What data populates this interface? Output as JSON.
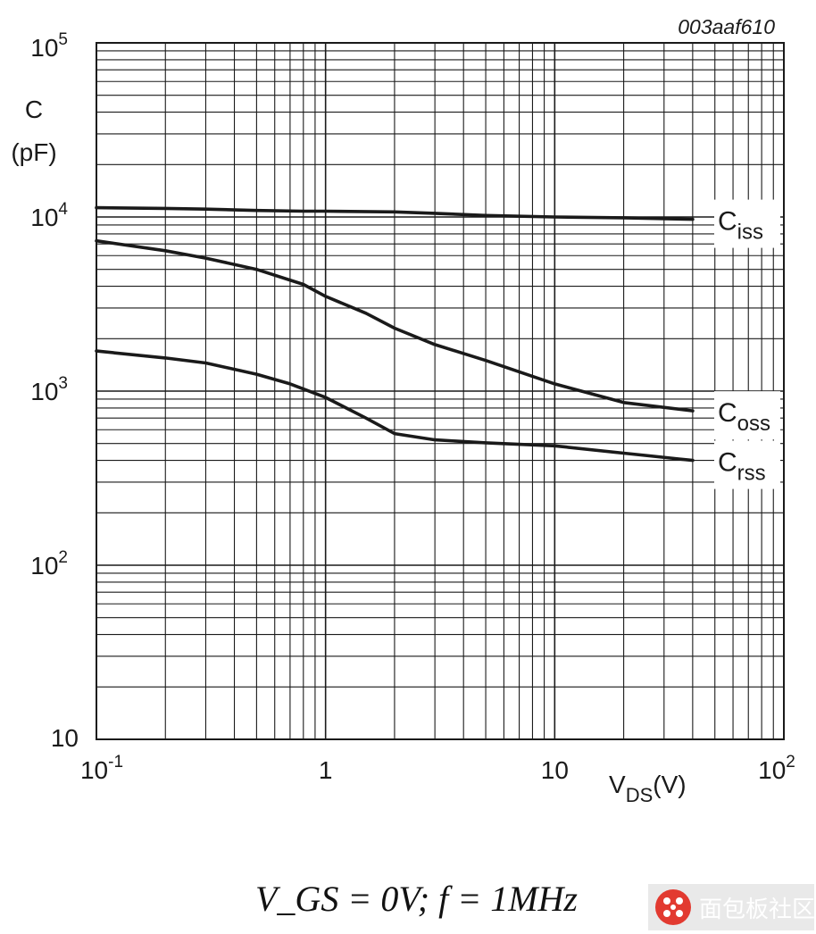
{
  "figure_code": "003aaf610",
  "conditions": "V_GS = 0V; f = 1MHz",
  "watermark": "面包板社区",
  "chart_data": {
    "type": "line",
    "title": "",
    "xlabel": "V_DS (V)",
    "xlabel_base": "V",
    "xlabel_sub": "DS",
    "xlabel_unit": "(V)",
    "ylabel": "C (pF)",
    "ylabel_line1": "C",
    "ylabel_line2": "(pF)",
    "xscale": "log",
    "yscale": "log",
    "xlim": [
      0.1,
      100
    ],
    "ylim": [
      10,
      100000
    ],
    "grid": true,
    "legend": "inline-right",
    "x_ticks": [
      {
        "value": 0.1,
        "base": "10",
        "exp": "-1"
      },
      {
        "value": 1,
        "base": "1",
        "exp": ""
      },
      {
        "value": 10,
        "base": "10",
        "exp": ""
      },
      {
        "value": 100,
        "base": "10",
        "exp": "2"
      }
    ],
    "y_ticks": [
      {
        "value": 10,
        "base": "10",
        "exp": ""
      },
      {
        "value": 100,
        "base": "10",
        "exp": "2"
      },
      {
        "value": 1000,
        "base": "10",
        "exp": "3"
      },
      {
        "value": 10000,
        "base": "10",
        "exp": "4"
      },
      {
        "value": 100000,
        "base": "10",
        "exp": "5"
      }
    ],
    "series": [
      {
        "name": "Ciss",
        "label_base": "C",
        "label_sub": "iss",
        "color": "#1a1a1a",
        "x": [
          0.1,
          0.2,
          0.3,
          0.5,
          0.8,
          1,
          2,
          3,
          5,
          10,
          20,
          40
        ],
        "y": [
          11300,
          11200,
          11100,
          10900,
          10800,
          10800,
          10700,
          10500,
          10200,
          10000,
          9900,
          9700
        ]
      },
      {
        "name": "Coss",
        "label_base": "C",
        "label_sub": "oss",
        "color": "#1a1a1a",
        "x": [
          0.1,
          0.2,
          0.3,
          0.5,
          0.8,
          1,
          1.5,
          2,
          3,
          5,
          10,
          20,
          40
        ],
        "y": [
          7300,
          6400,
          5800,
          5000,
          4100,
          3500,
          2800,
          2300,
          1850,
          1500,
          1100,
          860,
          770
        ]
      },
      {
        "name": "Crss",
        "label_base": "C",
        "label_sub": "rss",
        "color": "#1a1a1a",
        "x": [
          0.1,
          0.2,
          0.3,
          0.5,
          0.7,
          1,
          1.5,
          2,
          3,
          5,
          10,
          20,
          40
        ],
        "y": [
          1700,
          1550,
          1450,
          1250,
          1100,
          920,
          700,
          570,
          525,
          505,
          485,
          440,
          400
        ]
      }
    ]
  }
}
